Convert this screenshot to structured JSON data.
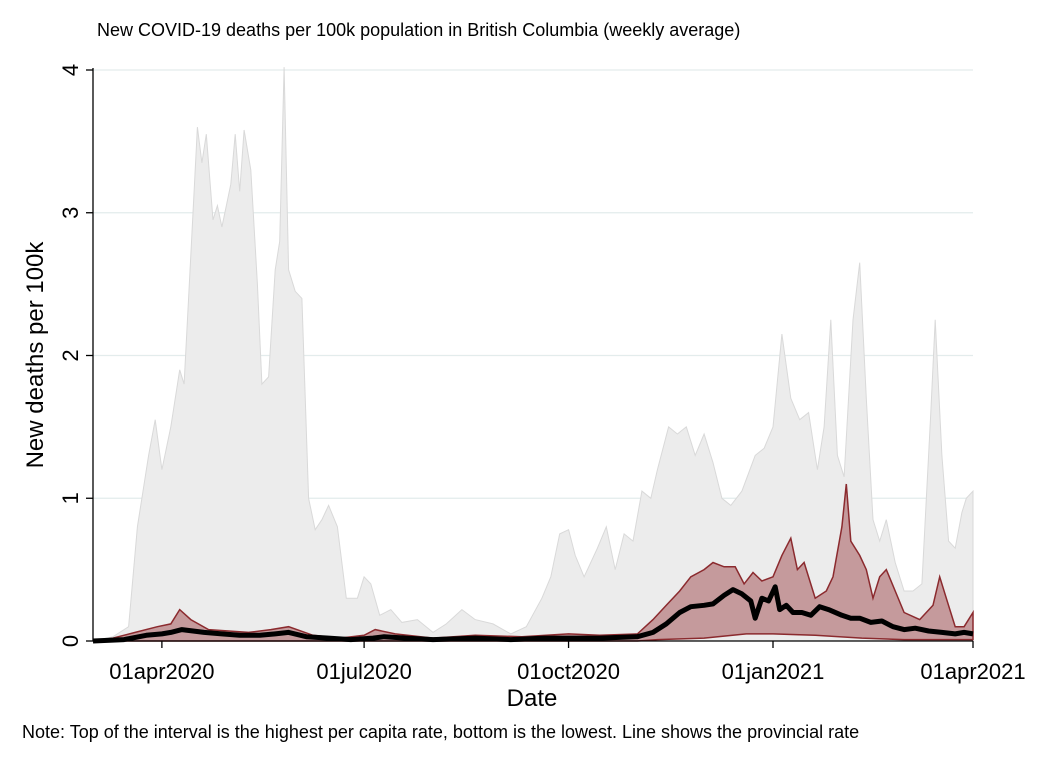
{
  "chart_data": {
    "type": "area",
    "title": "New COVID-19 deaths per 100k population in British Columbia (weekly average)",
    "xlabel": "Date",
    "ylabel": "New deaths per 100k",
    "note": "Note: Top of the interval is the highest per capita rate, bottom is the lowest. Line shows the provincial rate",
    "xlim": [
      "2020-03-01",
      "2021-04-01"
    ],
    "ylim": [
      0,
      4
    ],
    "x_ticks": [
      {
        "date": "2020-04-01",
        "label": "01apr2020"
      },
      {
        "date": "2020-07-01",
        "label": "01jul2020"
      },
      {
        "date": "2020-10-01",
        "label": "01oct2020"
      },
      {
        "date": "2021-01-01",
        "label": "01jan2021"
      },
      {
        "date": "2021-04-01",
        "label": "01apr2021"
      }
    ],
    "y_ticks": [
      0,
      1,
      2,
      3,
      4
    ],
    "grid": "horizontal",
    "colors": {
      "outer_band": "#ececec",
      "outer_band_edge": "#d9d9d9",
      "inner_band": "#c59a9c",
      "inner_band_edge": "#8b2a2e",
      "line": "#000000",
      "grid": "#e3ecec"
    },
    "series": [
      {
        "role": "outer_band_upper",
        "points": [
          [
            "2020-03-01",
            0.0
          ],
          [
            "2020-03-10",
            0.03
          ],
          [
            "2020-03-17",
            0.1
          ],
          [
            "2020-03-21",
            0.8
          ],
          [
            "2020-03-26",
            1.3
          ],
          [
            "2020-03-29",
            1.55
          ],
          [
            "2020-04-01",
            1.2
          ],
          [
            "2020-04-05",
            1.5
          ],
          [
            "2020-04-09",
            1.9
          ],
          [
            "2020-04-11",
            1.8
          ],
          [
            "2020-04-14",
            2.7
          ],
          [
            "2020-04-17",
            3.6
          ],
          [
            "2020-04-19",
            3.35
          ],
          [
            "2020-04-21",
            3.55
          ],
          [
            "2020-04-24",
            2.95
          ],
          [
            "2020-04-26",
            3.05
          ],
          [
            "2020-04-28",
            2.9
          ],
          [
            "2020-05-02",
            3.2
          ],
          [
            "2020-05-04",
            3.55
          ],
          [
            "2020-05-06",
            3.15
          ],
          [
            "2020-05-08",
            3.58
          ],
          [
            "2020-05-11",
            3.3
          ],
          [
            "2020-05-14",
            2.5
          ],
          [
            "2020-05-16",
            1.8
          ],
          [
            "2020-05-19",
            1.85
          ],
          [
            "2020-05-22",
            2.6
          ],
          [
            "2020-05-24",
            2.8
          ],
          [
            "2020-05-26",
            4.02
          ],
          [
            "2020-05-28",
            2.6
          ],
          [
            "2020-05-31",
            2.45
          ],
          [
            "2020-06-03",
            2.4
          ],
          [
            "2020-06-06",
            1.0
          ],
          [
            "2020-06-09",
            0.78
          ],
          [
            "2020-06-12",
            0.85
          ],
          [
            "2020-06-15",
            0.95
          ],
          [
            "2020-06-19",
            0.8
          ],
          [
            "2020-06-23",
            0.3
          ],
          [
            "2020-06-28",
            0.3
          ],
          [
            "2020-07-01",
            0.45
          ],
          [
            "2020-07-04",
            0.4
          ],
          [
            "2020-07-08",
            0.18
          ],
          [
            "2020-07-13",
            0.22
          ],
          [
            "2020-07-18",
            0.13
          ],
          [
            "2020-07-25",
            0.15
          ],
          [
            "2020-08-01",
            0.06
          ],
          [
            "2020-08-07",
            0.12
          ],
          [
            "2020-08-14",
            0.22
          ],
          [
            "2020-08-20",
            0.15
          ],
          [
            "2020-08-28",
            0.12
          ],
          [
            "2020-09-05",
            0.05
          ],
          [
            "2020-09-12",
            0.1
          ],
          [
            "2020-09-19",
            0.3
          ],
          [
            "2020-09-23",
            0.45
          ],
          [
            "2020-09-27",
            0.75
          ],
          [
            "2020-10-01",
            0.78
          ],
          [
            "2020-10-04",
            0.6
          ],
          [
            "2020-10-08",
            0.45
          ],
          [
            "2020-10-14",
            0.65
          ],
          [
            "2020-10-18",
            0.8
          ],
          [
            "2020-10-22",
            0.5
          ],
          [
            "2020-10-26",
            0.75
          ],
          [
            "2020-10-30",
            0.7
          ],
          [
            "2020-11-03",
            1.05
          ],
          [
            "2020-11-07",
            1.0
          ],
          [
            "2020-11-10",
            1.2
          ],
          [
            "2020-11-15",
            1.5
          ],
          [
            "2020-11-19",
            1.45
          ],
          [
            "2020-11-23",
            1.5
          ],
          [
            "2020-11-27",
            1.3
          ],
          [
            "2020-12-01",
            1.45
          ],
          [
            "2020-12-05",
            1.25
          ],
          [
            "2020-12-09",
            1.0
          ],
          [
            "2020-12-13",
            0.95
          ],
          [
            "2020-12-18",
            1.05
          ],
          [
            "2020-12-24",
            1.3
          ],
          [
            "2020-12-28",
            1.35
          ],
          [
            "2021-01-01",
            1.5
          ],
          [
            "2021-01-05",
            2.15
          ],
          [
            "2021-01-09",
            1.7
          ],
          [
            "2021-01-13",
            1.55
          ],
          [
            "2021-01-17",
            1.6
          ],
          [
            "2021-01-21",
            1.2
          ],
          [
            "2021-01-24",
            1.5
          ],
          [
            "2021-01-27",
            2.25
          ],
          [
            "2021-01-30",
            1.3
          ],
          [
            "2021-02-02",
            1.15
          ],
          [
            "2021-02-06",
            2.25
          ],
          [
            "2021-02-09",
            2.65
          ],
          [
            "2021-02-12",
            1.7
          ],
          [
            "2021-02-15",
            0.85
          ],
          [
            "2021-02-18",
            0.7
          ],
          [
            "2021-02-21",
            0.85
          ],
          [
            "2021-02-25",
            0.55
          ],
          [
            "2021-03-01",
            0.35
          ],
          [
            "2021-03-05",
            0.35
          ],
          [
            "2021-03-09",
            0.4
          ],
          [
            "2021-03-13",
            1.6
          ],
          [
            "2021-03-15",
            2.25
          ],
          [
            "2021-03-18",
            1.3
          ],
          [
            "2021-03-21",
            0.7
          ],
          [
            "2021-03-24",
            0.65
          ],
          [
            "2021-03-27",
            0.9
          ],
          [
            "2021-03-29",
            1.0
          ],
          [
            "2021-04-01",
            1.05
          ]
        ]
      },
      {
        "role": "inner_band_upper",
        "points": [
          [
            "2020-03-01",
            0.0
          ],
          [
            "2020-03-10",
            0.02
          ],
          [
            "2020-03-20",
            0.06
          ],
          [
            "2020-03-30",
            0.1
          ],
          [
            "2020-04-05",
            0.12
          ],
          [
            "2020-04-09",
            0.22
          ],
          [
            "2020-04-14",
            0.15
          ],
          [
            "2020-04-22",
            0.08
          ],
          [
            "2020-05-01",
            0.07
          ],
          [
            "2020-05-10",
            0.06
          ],
          [
            "2020-05-20",
            0.08
          ],
          [
            "2020-05-28",
            0.1
          ],
          [
            "2020-06-08",
            0.04
          ],
          [
            "2020-06-20",
            0.02
          ],
          [
            "2020-07-01",
            0.04
          ],
          [
            "2020-07-06",
            0.08
          ],
          [
            "2020-07-15",
            0.05
          ],
          [
            "2020-08-01",
            0.02
          ],
          [
            "2020-08-20",
            0.04
          ],
          [
            "2020-09-10",
            0.03
          ],
          [
            "2020-10-01",
            0.05
          ],
          [
            "2020-10-15",
            0.04
          ],
          [
            "2020-11-01",
            0.05
          ],
          [
            "2020-11-08",
            0.15
          ],
          [
            "2020-11-14",
            0.25
          ],
          [
            "2020-11-20",
            0.35
          ],
          [
            "2020-11-25",
            0.45
          ],
          [
            "2020-12-01",
            0.5
          ],
          [
            "2020-12-05",
            0.55
          ],
          [
            "2020-12-10",
            0.52
          ],
          [
            "2020-12-15",
            0.52
          ],
          [
            "2020-12-19",
            0.4
          ],
          [
            "2020-12-23",
            0.48
          ],
          [
            "2020-12-27",
            0.42
          ],
          [
            "2021-01-01",
            0.45
          ],
          [
            "2021-01-05",
            0.6
          ],
          [
            "2021-01-09",
            0.72
          ],
          [
            "2021-01-12",
            0.5
          ],
          [
            "2021-01-15",
            0.55
          ],
          [
            "2021-01-20",
            0.3
          ],
          [
            "2021-01-25",
            0.35
          ],
          [
            "2021-01-28",
            0.45
          ],
          [
            "2021-02-01",
            0.8
          ],
          [
            "2021-02-03",
            1.1
          ],
          [
            "2021-02-05",
            0.7
          ],
          [
            "2021-02-09",
            0.6
          ],
          [
            "2021-02-12",
            0.5
          ],
          [
            "2021-02-15",
            0.3
          ],
          [
            "2021-02-18",
            0.45
          ],
          [
            "2021-02-21",
            0.5
          ],
          [
            "2021-02-25",
            0.35
          ],
          [
            "2021-03-01",
            0.2
          ],
          [
            "2021-03-08",
            0.15
          ],
          [
            "2021-03-14",
            0.25
          ],
          [
            "2021-03-17",
            0.45
          ],
          [
            "2021-03-20",
            0.3
          ],
          [
            "2021-03-24",
            0.1
          ],
          [
            "2021-03-28",
            0.1
          ],
          [
            "2021-04-01",
            0.2
          ]
        ]
      },
      {
        "role": "inner_band_lower",
        "points": [
          [
            "2020-03-01",
            0.0
          ],
          [
            "2020-11-01",
            0.0
          ],
          [
            "2020-11-10",
            0.01
          ],
          [
            "2020-12-01",
            0.02
          ],
          [
            "2020-12-20",
            0.05
          ],
          [
            "2021-01-01",
            0.05
          ],
          [
            "2021-01-20",
            0.04
          ],
          [
            "2021-02-10",
            0.02
          ],
          [
            "2021-03-01",
            0.01
          ],
          [
            "2021-04-01",
            0.01
          ]
        ]
      },
      {
        "role": "provincial_rate",
        "name": "",
        "points": [
          [
            "2020-03-01",
            0.0
          ],
          [
            "2020-03-15",
            0.01
          ],
          [
            "2020-03-25",
            0.04
          ],
          [
            "2020-04-01",
            0.05
          ],
          [
            "2020-04-05",
            0.06
          ],
          [
            "2020-04-10",
            0.08
          ],
          [
            "2020-04-15",
            0.07
          ],
          [
            "2020-04-20",
            0.06
          ],
          [
            "2020-04-28",
            0.05
          ],
          [
            "2020-05-06",
            0.04
          ],
          [
            "2020-05-15",
            0.04
          ],
          [
            "2020-05-22",
            0.05
          ],
          [
            "2020-05-28",
            0.06
          ],
          [
            "2020-06-05",
            0.03
          ],
          [
            "2020-06-15",
            0.02
          ],
          [
            "2020-06-25",
            0.01
          ],
          [
            "2020-07-05",
            0.02
          ],
          [
            "2020-07-10",
            0.03
          ],
          [
            "2020-07-20",
            0.02
          ],
          [
            "2020-08-01",
            0.01
          ],
          [
            "2020-08-20",
            0.02
          ],
          [
            "2020-09-05",
            0.01
          ],
          [
            "2020-09-20",
            0.02
          ],
          [
            "2020-10-01",
            0.02
          ],
          [
            "2020-10-15",
            0.02
          ],
          [
            "2020-11-01",
            0.03
          ],
          [
            "2020-11-08",
            0.06
          ],
          [
            "2020-11-14",
            0.12
          ],
          [
            "2020-11-20",
            0.2
          ],
          [
            "2020-11-25",
            0.24
          ],
          [
            "2020-12-01",
            0.25
          ],
          [
            "2020-12-05",
            0.26
          ],
          [
            "2020-12-10",
            0.32
          ],
          [
            "2020-12-14",
            0.36
          ],
          [
            "2020-12-18",
            0.33
          ],
          [
            "2020-12-22",
            0.28
          ],
          [
            "2020-12-24",
            0.16
          ],
          [
            "2020-12-27",
            0.3
          ],
          [
            "2020-12-30",
            0.28
          ],
          [
            "2021-01-02",
            0.38
          ],
          [
            "2021-01-04",
            0.22
          ],
          [
            "2021-01-07",
            0.25
          ],
          [
            "2021-01-10",
            0.2
          ],
          [
            "2021-01-14",
            0.2
          ],
          [
            "2021-01-18",
            0.18
          ],
          [
            "2021-01-22",
            0.24
          ],
          [
            "2021-01-26",
            0.22
          ],
          [
            "2021-02-01",
            0.18
          ],
          [
            "2021-02-05",
            0.16
          ],
          [
            "2021-02-09",
            0.16
          ],
          [
            "2021-02-14",
            0.13
          ],
          [
            "2021-02-19",
            0.14
          ],
          [
            "2021-02-24",
            0.1
          ],
          [
            "2021-03-01",
            0.08
          ],
          [
            "2021-03-06",
            0.09
          ],
          [
            "2021-03-12",
            0.07
          ],
          [
            "2021-03-18",
            0.06
          ],
          [
            "2021-03-24",
            0.05
          ],
          [
            "2021-03-28",
            0.06
          ],
          [
            "2021-04-01",
            0.05
          ]
        ]
      }
    ]
  }
}
